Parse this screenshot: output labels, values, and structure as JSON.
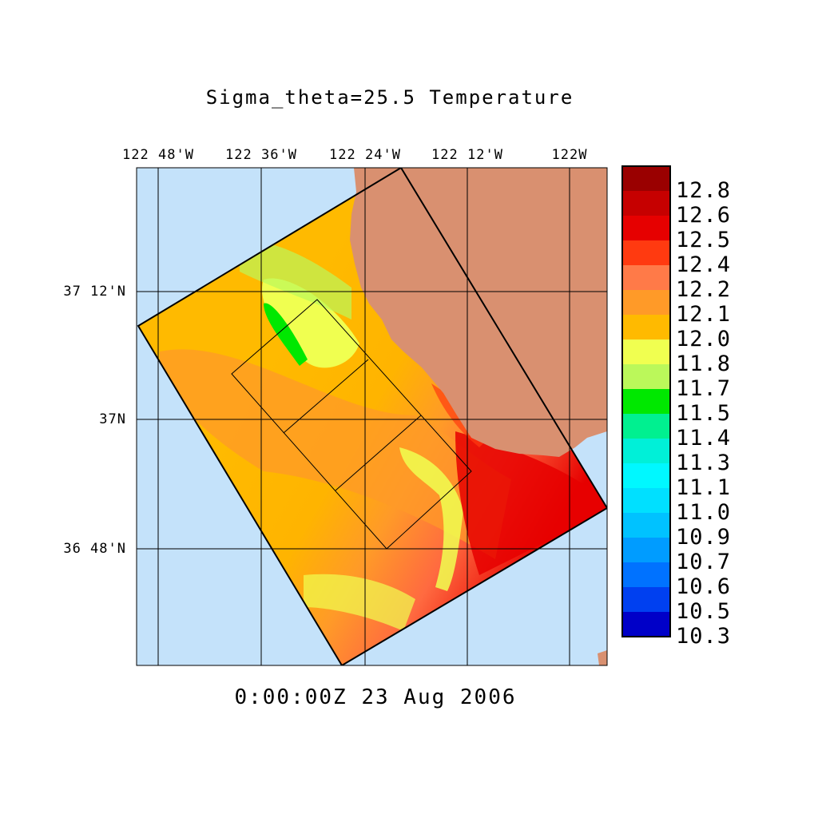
{
  "title": "Sigma_theta=25.5 Temperature",
  "timestamp": "0:00:00Z  23 Aug 2006",
  "axes": {
    "lon_ticks": [
      "122 48'W",
      "122 36'W",
      "122 24'W",
      "122 12'W",
      "122W"
    ],
    "lat_ticks": [
      "37 12'N",
      "37N",
      "36 48'N"
    ]
  },
  "colors": {
    "ocean": "#c4e2fa",
    "land": "#d99070",
    "outline": "#000000"
  },
  "colorbar": {
    "labels": [
      "12.8",
      "12.6",
      "12.5",
      "12.4",
      "12.2",
      "12.1",
      "12.0",
      "11.8",
      "11.7",
      "11.5",
      "11.4",
      "11.3",
      "11.1",
      "11.0",
      "10.9",
      "10.7",
      "10.6",
      "10.5",
      "10.3"
    ],
    "colors": [
      "#9a0000",
      "#c60000",
      "#e60000",
      "#ff3a10",
      "#ff7a48",
      "#ff9a28",
      "#ffba00",
      "#f0ff50",
      "#bbf85a",
      "#00e800",
      "#00f090",
      "#00f0d8",
      "#00f8ff",
      "#00e0ff",
      "#00c2ff",
      "#009cff",
      "#0072ff",
      "#0040f0",
      "#0000c8"
    ]
  }
}
